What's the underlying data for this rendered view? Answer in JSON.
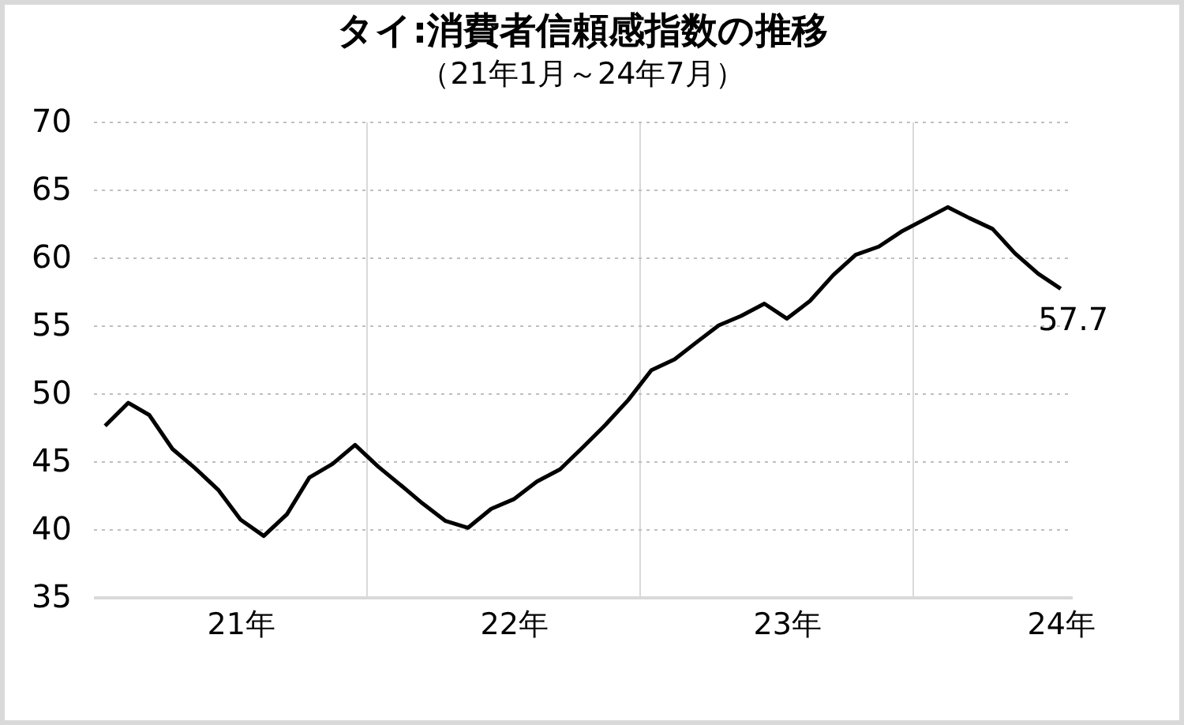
{
  "chart_data": {
    "type": "line",
    "title": "タイ:消費者信頼感指数の推移",
    "subtitle": "（21年1月～24年7月）",
    "x": [
      "2021-01",
      "2021-02",
      "2021-03",
      "2021-04",
      "2021-05",
      "2021-06",
      "2021-07",
      "2021-08",
      "2021-09",
      "2021-10",
      "2021-11",
      "2021-12",
      "2022-01",
      "2022-02",
      "2022-03",
      "2022-04",
      "2022-05",
      "2022-06",
      "2022-07",
      "2022-08",
      "2022-09",
      "2022-10",
      "2022-11",
      "2022-12",
      "2023-01",
      "2023-02",
      "2023-03",
      "2023-04",
      "2023-05",
      "2023-06",
      "2023-07",
      "2023-08",
      "2023-09",
      "2023-10",
      "2023-11",
      "2023-12",
      "2024-01",
      "2024-02",
      "2024-03",
      "2024-04",
      "2024-05",
      "2024-06",
      "2024-07"
    ],
    "series": [
      {
        "color": "#000000",
        "values": [
          47.6,
          49.3,
          48.4,
          45.9,
          44.5,
          42.9,
          40.7,
          39.5,
          41.1,
          43.8,
          44.8,
          46.2,
          44.6,
          43.2,
          41.9,
          40.6,
          40.1,
          41.5,
          42.2,
          43.5,
          44.4,
          46.0,
          47.7,
          49.5,
          51.7,
          52.5,
          53.7,
          55.0,
          55.7,
          56.6,
          55.5,
          56.8,
          58.7,
          60.2,
          60.8,
          61.9,
          62.8,
          63.7,
          62.9,
          62.1,
          60.3,
          58.8,
          57.7
        ]
      }
    ],
    "xlim": [
      "2020-12-16",
      "2024-07-16"
    ],
    "xticks": [
      {
        "value": "2021-07-01",
        "label": "21年"
      },
      {
        "value": "2021-12-16",
        "label": null
      },
      {
        "value": "2022-07-01",
        "label": "22年"
      },
      {
        "value": "2022-12-16",
        "label": null
      },
      {
        "value": "2023-07-01",
        "label": "23年"
      },
      {
        "value": "2023-12-16",
        "label": null
      },
      {
        "value": "2024-07-01",
        "label": "24年"
      }
    ],
    "ylim": [
      35,
      70
    ],
    "yticks": [
      35,
      40,
      45,
      50,
      55,
      60,
      65,
      70
    ],
    "grid": true,
    "legend": false,
    "marker": "none",
    "line_style": "solid",
    "annotations": [
      {
        "text": "57.7",
        "x": "2024-07",
        "y": 57.7
      }
    ]
  }
}
